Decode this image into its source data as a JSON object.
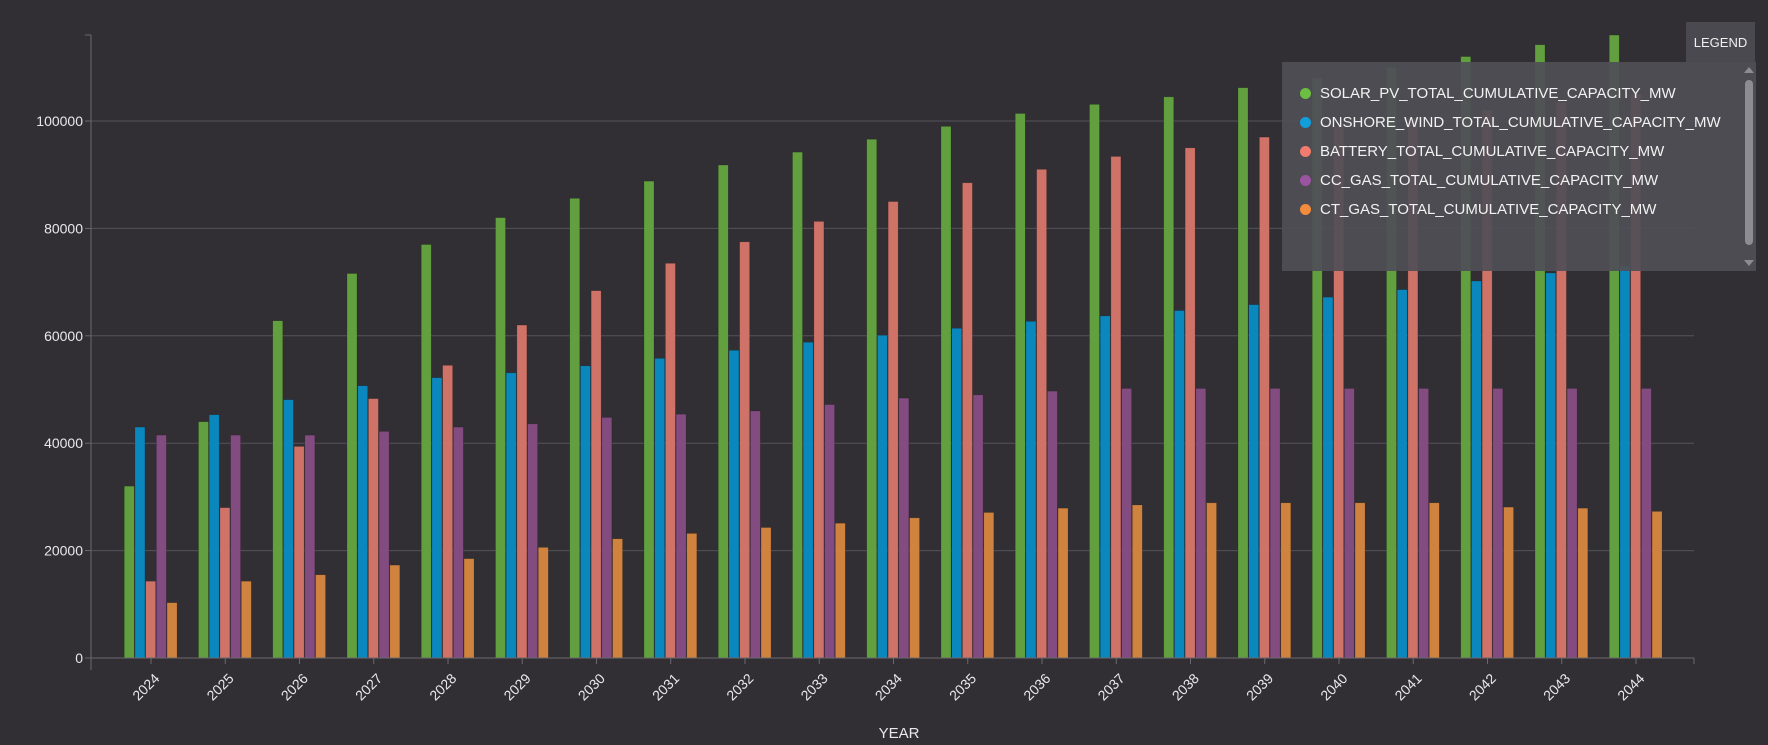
{
  "chart_data": {
    "type": "bar",
    "title": "",
    "xlabel": "YEAR",
    "ylabel": "",
    "ylim": [
      0,
      116000
    ],
    "yticks": [
      0,
      20000,
      40000,
      60000,
      80000,
      100000
    ],
    "ytick_labels": [
      "0",
      "20000",
      "40000",
      "60000",
      "80000",
      "100000"
    ],
    "grid": true,
    "legend_placement": "top-right",
    "categories": [
      "2024",
      "2025",
      "2026",
      "2027",
      "2028",
      "2029",
      "2030",
      "2031",
      "2032",
      "2033",
      "2034",
      "2035",
      "2036",
      "2037",
      "2038",
      "2039",
      "2040",
      "2041",
      "2042",
      "2043",
      "2044"
    ],
    "series": [
      {
        "name": "SOLAR_PV_TOTAL_CUMULATIVE_CAPACITY_MW",
        "color": "#62a03f",
        "legend_color": "#6cbf40",
        "values": [
          32000,
          44000,
          62800,
          71600,
          77000,
          82000,
          85600,
          88800,
          91800,
          94200,
          96600,
          99000,
          101400,
          103100,
          104500,
          106200,
          108000,
          110000,
          112000,
          114200,
          116000
        ]
      },
      {
        "name": "ONSHORE_WIND_TOTAL_CUMULATIVE_CAPACITY_MW",
        "color": "#0a88bd",
        "legend_color": "#119fdc",
        "values": [
          43000,
          45300,
          48100,
          50700,
          52200,
          53100,
          54400,
          55800,
          57300,
          58800,
          60100,
          61400,
          62700,
          63700,
          64700,
          65800,
          67200,
          68600,
          70200,
          71700,
          73000
        ]
      },
      {
        "name": "BATTERY_TOTAL_CUMULATIVE_CAPACITY_MW",
        "color": "#cf7268",
        "legend_color": "#f07b6e",
        "values": [
          14300,
          28000,
          39400,
          48300,
          54500,
          62000,
          68400,
          73500,
          77500,
          81300,
          85000,
          88500,
          91000,
          93400,
          95000,
          97000,
          99000,
          100500,
          102000,
          103500,
          105000
        ]
      },
      {
        "name": "CC_GAS_TOTAL_CUMULATIVE_CAPACITY_MW",
        "color": "#834c80",
        "legend_color": "#9a55a0",
        "values": [
          41500,
          41500,
          41500,
          42200,
          43000,
          43600,
          44800,
          45400,
          46000,
          47200,
          48400,
          49000,
          49700,
          50200,
          50200,
          50200,
          50200,
          50200,
          50200,
          50200,
          50200
        ]
      },
      {
        "name": "CT_GAS_TOTAL_CUMULATIVE_CAPACITY_MW",
        "color": "#d0833f",
        "legend_color": "#f28c3c",
        "values": [
          10300,
          14300,
          15500,
          17300,
          18500,
          20600,
          22200,
          23200,
          24300,
          25100,
          26100,
          27100,
          27900,
          28500,
          28900,
          28900,
          28900,
          28900,
          28100,
          27900,
          27300
        ]
      }
    ]
  },
  "legend": {
    "button_label": "LEGEND"
  }
}
